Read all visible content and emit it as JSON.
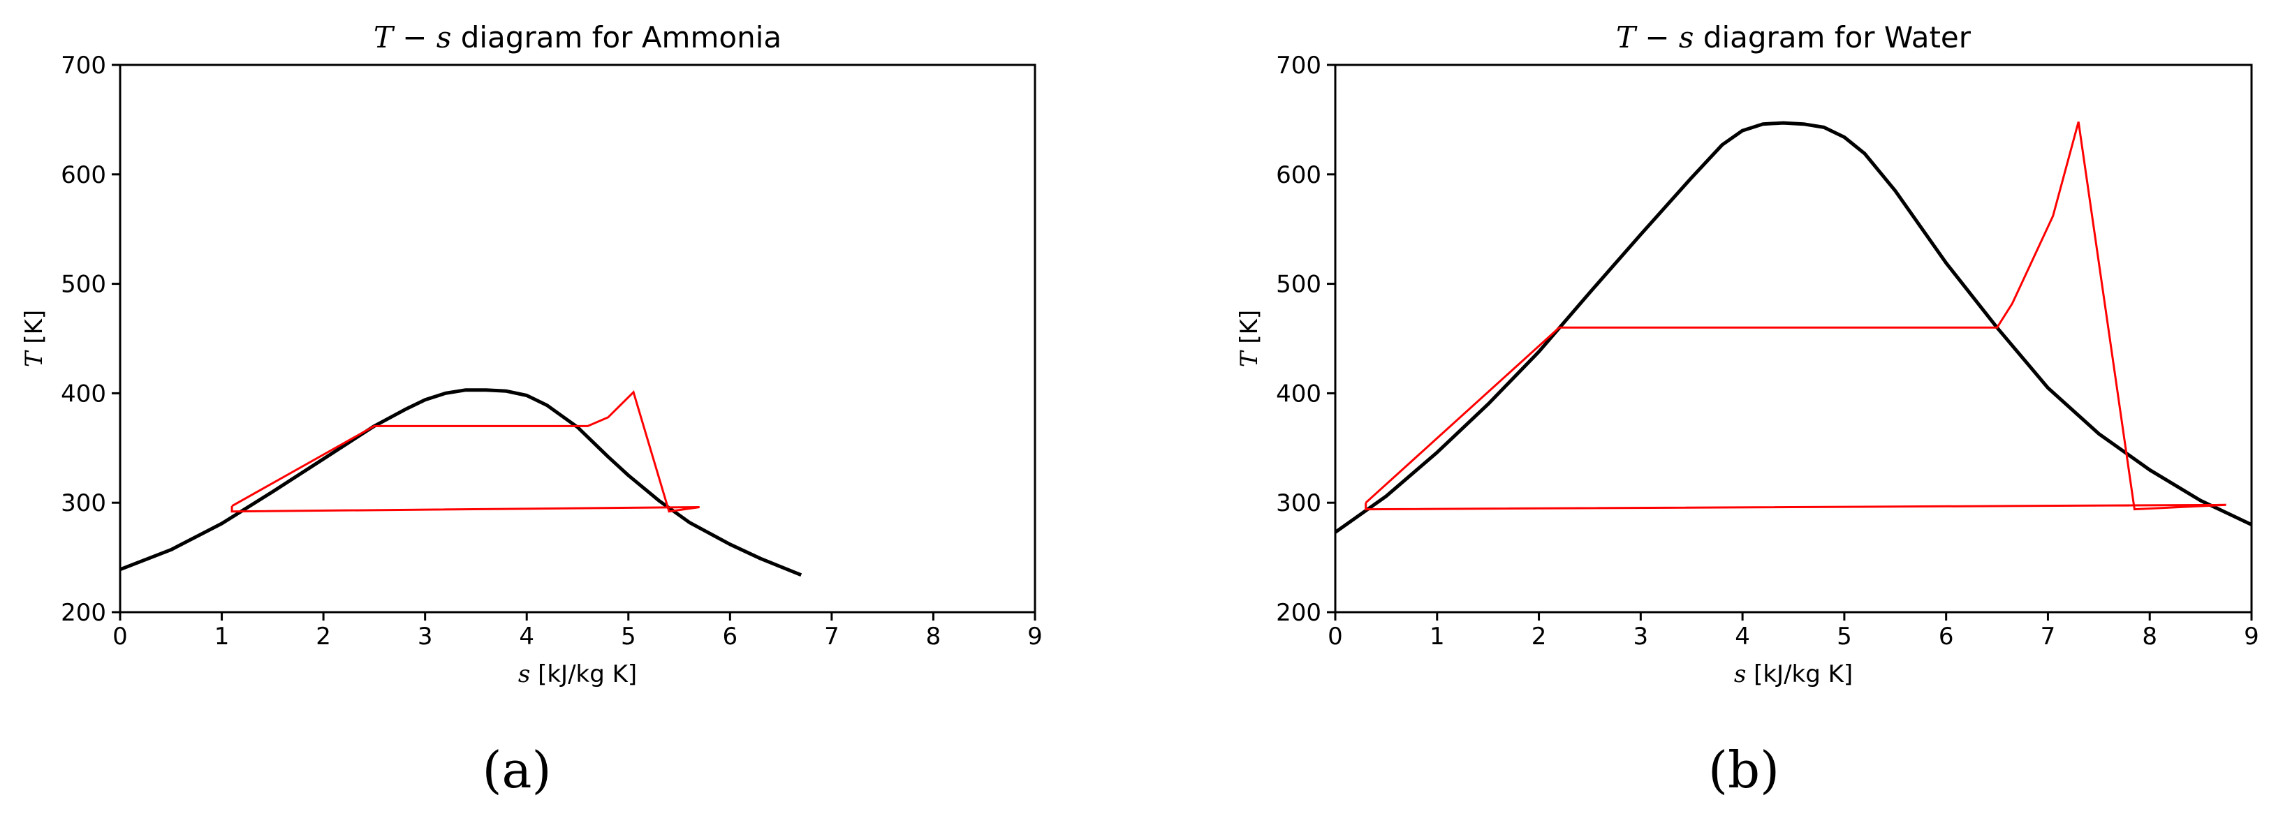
{
  "chart_data": [
    {
      "type": "line",
      "panel_label": "(a)",
      "title_var": "T",
      "title_op": " − ",
      "title_var2": "s",
      "title_text": " diagram for Ammonia",
      "xlabel_var": "s",
      "xlabel_unit": " [kJ/kg K]",
      "ylabel_var": "T",
      "ylabel_unit": " [K]",
      "xlim": [
        0,
        9
      ],
      "ylim": [
        200,
        700
      ],
      "xticks": [
        0,
        1,
        2,
        3,
        4,
        5,
        6,
        7,
        8,
        9
      ],
      "yticks": [
        200,
        300,
        400,
        500,
        600,
        700
      ],
      "grid": false,
      "colors": {
        "dome": "#000000",
        "cycle": "#ff0000"
      },
      "series": [
        {
          "style": "black",
          "x": [
            0.0,
            0.5,
            1.0,
            1.5,
            2.0,
            2.5,
            2.8,
            3.0,
            3.2,
            3.4,
            3.6,
            3.8,
            4.0,
            4.2,
            4.5,
            4.8,
            5.0,
            5.3,
            5.6,
            6.0,
            6.3,
            6.7
          ],
          "y": [
            239,
            257,
            281,
            310,
            340,
            370,
            385,
            394,
            400,
            403,
            403,
            402,
            398,
            389,
            369,
            342,
            325,
            302,
            282,
            262,
            249,
            234
          ]
        },
        {
          "style": "red",
          "x": [
            1.1,
            2.5,
            4.6,
            4.8,
            5.05,
            5.4,
            5.7,
            1.1,
            1.1
          ],
          "y": [
            297,
            370,
            370,
            378,
            401,
            292,
            296,
            292,
            297
          ]
        }
      ]
    },
    {
      "type": "line",
      "panel_label": "(b)",
      "title_var": "T",
      "title_op": " − ",
      "title_var2": "s",
      "title_text": " diagram for Water",
      "xlabel_var": "s",
      "xlabel_unit": " [kJ/kg K]",
      "ylabel_var": "T",
      "ylabel_unit": " [K]",
      "xlim": [
        0,
        9
      ],
      "ylim": [
        200,
        700
      ],
      "xticks": [
        0,
        1,
        2,
        3,
        4,
        5,
        6,
        7,
        8,
        9
      ],
      "yticks": [
        200,
        300,
        400,
        500,
        600,
        700
      ],
      "grid": false,
      "colors": {
        "dome": "#000000",
        "cycle": "#ff0000"
      },
      "series": [
        {
          "style": "black",
          "x": [
            0.0,
            0.5,
            1.0,
            1.5,
            2.0,
            2.5,
            3.0,
            3.5,
            3.8,
            4.0,
            4.2,
            4.4,
            4.6,
            4.8,
            5.0,
            5.2,
            5.5,
            6.0,
            6.5,
            7.0,
            7.5,
            8.0,
            8.5,
            9.0
          ],
          "y": [
            273,
            306,
            346,
            390,
            438,
            492,
            545,
            597,
            627,
            640,
            646,
            647,
            646,
            643,
            634,
            619,
            585,
            519,
            460,
            405,
            363,
            330,
            302,
            280
          ]
        },
        {
          "style": "red",
          "x": [
            0.3,
            2.2,
            6.5,
            6.65,
            7.05,
            7.3,
            7.85,
            8.75,
            0.3,
            0.3
          ],
          "y": [
            300,
            460,
            460,
            482,
            562,
            648,
            294,
            298,
            294,
            300
          ]
        }
      ]
    }
  ]
}
